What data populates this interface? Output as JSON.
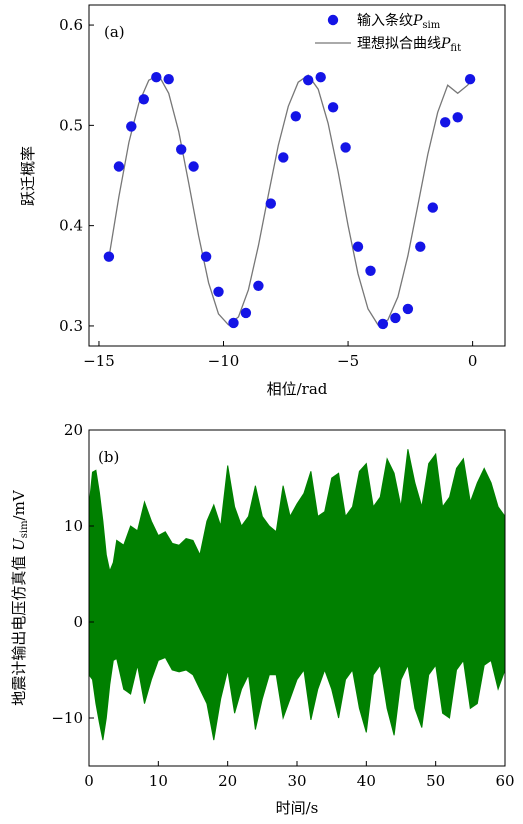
{
  "chart_data": [
    {
      "type": "scatter",
      "panel_label": "(a)",
      "xlabel": "相位/rad",
      "ylabel": "跃迁概率",
      "xlim": [
        -15.4,
        1.3
      ],
      "ylim": [
        0.28,
        0.62
      ],
      "xticks": [
        -15,
        -10,
        -5,
        0
      ],
      "xtick_labels": [
        "−15",
        "−10",
        "−5",
        "0"
      ],
      "yticks": [
        0.3,
        0.4,
        0.5,
        0.6
      ],
      "ytick_labels": [
        "0.3",
        "0.4",
        "0.5",
        "0.6"
      ],
      "legend_position": "top-right",
      "legend": {
        "scatter": {
          "text": "输入条纹",
          "symbol": "P",
          "subscript": "sim"
        },
        "line": {
          "text": "理想拟合曲线",
          "symbol": "P",
          "subscript": "fit"
        }
      },
      "colors": {
        "scatter": "#1414e6",
        "line": "#777777"
      },
      "series": [
        {
          "kind": "scatter",
          "x": [
            -14.6,
            -14.2,
            -13.7,
            -13.2,
            -12.7,
            -12.2,
            -11.7,
            -11.2,
            -10.7,
            -10.2,
            -9.6,
            -9.1,
            -8.6,
            -8.1,
            -7.6,
            -7.1,
            -6.6,
            -6.1,
            -5.6,
            -5.1,
            -4.6,
            -4.1,
            -3.6,
            -3.1,
            -2.6,
            -2.1,
            -1.6,
            -1.1,
            -0.6,
            -0.1
          ],
          "y": [
            0.369,
            0.459,
            0.499,
            0.526,
            0.548,
            0.546,
            0.476,
            0.459,
            0.369,
            0.334,
            0.303,
            0.313,
            0.34,
            0.422,
            0.468,
            0.509,
            0.545,
            0.548,
            0.518,
            0.478,
            0.379,
            0.355,
            0.302,
            0.308,
            0.317,
            0.379,
            0.418,
            0.503,
            0.508,
            0.546
          ]
        },
        {
          "kind": "line",
          "x": [
            -14.6,
            -14.2,
            -13.8,
            -13.4,
            -13.0,
            -12.6,
            -12.2,
            -11.8,
            -11.4,
            -11.0,
            -10.6,
            -10.2,
            -9.8,
            -9.4,
            -9.0,
            -8.6,
            -8.2,
            -7.8,
            -7.4,
            -7.0,
            -6.6,
            -6.2,
            -5.8,
            -5.4,
            -5.0,
            -4.6,
            -4.2,
            -3.8,
            -3.4,
            -3.0,
            -2.6,
            -2.2,
            -1.8,
            -1.4,
            -1.0,
            -0.6,
            -0.2,
            0.0
          ],
          "y": [
            0.368,
            0.429,
            0.483,
            0.522,
            0.545,
            0.55,
            0.532,
            0.494,
            0.443,
            0.39,
            0.343,
            0.312,
            0.301,
            0.309,
            0.336,
            0.38,
            0.431,
            0.48,
            0.519,
            0.543,
            0.55,
            0.536,
            0.502,
            0.454,
            0.4,
            0.352,
            0.317,
            0.301,
            0.306,
            0.329,
            0.37,
            0.42,
            0.471,
            0.513,
            0.54,
            0.532,
            0.54,
            0.546
          ]
        }
      ]
    },
    {
      "type": "line",
      "panel_label": "(b)",
      "xlabel": "时间/s",
      "ylabel": "地震计输出电压仿真值",
      "ylabel_symbol": "U",
      "ylabel_subscript": "sim",
      "ylabel_unit": "/mV",
      "xlim": [
        0,
        60
      ],
      "ylim": [
        -15,
        20
      ],
      "xticks": [
        0,
        10,
        20,
        30,
        40,
        50,
        60
      ],
      "xtick_labels": [
        "0",
        "10",
        "20",
        "30",
        "40",
        "50",
        "60"
      ],
      "yticks": [
        -10,
        0,
        10,
        20
      ],
      "ytick_labels": [
        "−10",
        "0",
        "10",
        "20"
      ],
      "colors": {
        "signal": "#008000"
      },
      "series": [
        {
          "kind": "oscillation-envelope",
          "t": [
            0,
            0.5,
            1.0,
            1.5,
            2.0,
            2.5,
            3.0,
            3.5,
            4.0,
            5.0,
            6.0,
            7.0,
            8.0,
            9.0,
            10.0,
            11.0,
            12.0,
            13.0,
            14.0,
            15.0,
            16.0,
            17.0,
            18.0,
            19.0,
            20.0,
            21.0,
            22.0,
            23.0,
            24.0,
            25.0,
            26.0,
            27.0,
            28.0,
            29.0,
            30.0,
            31.0,
            32.0,
            33.0,
            34.0,
            35.0,
            36.0,
            37.0,
            38.0,
            39.0,
            40.0,
            41.0,
            42.0,
            43.0,
            44.0,
            45.0,
            46.0,
            47.0,
            48.0,
            49.0,
            50.0,
            51.0,
            52.0,
            53.0,
            54.0,
            55.0,
            56.0,
            57.0,
            58.0,
            59.0,
            60.0
          ],
          "upper": [
            12.0,
            15.6,
            15.8,
            13.5,
            10.5,
            7.0,
            5.3,
            6.2,
            8.5,
            8.0,
            10.0,
            9.5,
            12.5,
            10.5,
            9.0,
            9.4,
            8.2,
            8.0,
            8.7,
            8.5,
            7.0,
            10.5,
            12.2,
            10.0,
            16.3,
            12.0,
            10.0,
            11.0,
            14.2,
            11.0,
            10.0,
            9.4,
            14.2,
            11.0,
            12.3,
            13.4,
            15.7,
            11.0,
            11.5,
            15.0,
            15.5,
            11.0,
            12.0,
            15.7,
            16.5,
            12.0,
            13.0,
            17.0,
            15.5,
            12.0,
            18.0,
            14.5,
            12.0,
            16.5,
            17.5,
            12.0,
            13.0,
            16.0,
            17.0,
            12.5,
            14.5,
            16.0,
            14.5,
            12.0,
            11.0
          ],
          "lower": [
            -5.5,
            -6.0,
            -8.5,
            -10.5,
            -12.3,
            -10.0,
            -6.5,
            -4.0,
            -3.8,
            -7.0,
            -7.5,
            -4.5,
            -8.5,
            -6.0,
            -4.0,
            -3.7,
            -5.0,
            -5.2,
            -5.0,
            -5.5,
            -7.0,
            -8.5,
            -12.3,
            -8.0,
            -5.0,
            -9.5,
            -7.0,
            -5.5,
            -11.2,
            -8.0,
            -5.5,
            -5.5,
            -10.0,
            -8.0,
            -6.0,
            -5.0,
            -10.2,
            -7.0,
            -5.0,
            -7.0,
            -10.0,
            -6.0,
            -5.0,
            -9.0,
            -11.5,
            -5.5,
            -4.5,
            -9.0,
            -11.8,
            -6.0,
            -4.5,
            -9.0,
            -11.0,
            -5.5,
            -4.5,
            -9.5,
            -10.0,
            -5.0,
            -4.0,
            -9.0,
            -8.5,
            -4.5,
            -4.0,
            -7.0,
            -5.0
          ]
        }
      ]
    }
  ]
}
